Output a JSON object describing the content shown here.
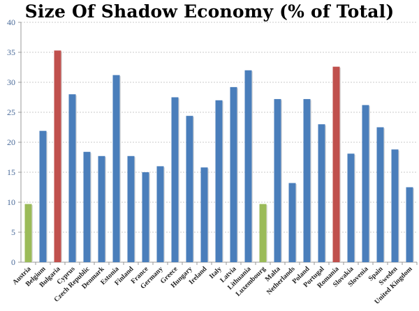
{
  "chart_data": {
    "type": "bar",
    "title": "Size Of Shadow Economy (% of Total)",
    "xlabel": "",
    "ylabel": "",
    "ylim": [
      0,
      40
    ],
    "yticks": [
      0,
      5,
      10,
      15,
      20,
      25,
      30,
      35,
      40
    ],
    "grid": true,
    "categories": [
      "Austria",
      "Belgium",
      "Bulgaria",
      "Cyprus",
      "Czech Republic",
      "Denmark",
      "Estonia",
      "Finland",
      "France",
      "Germany",
      "Greece",
      "Hungary",
      "Ireland",
      "Italy",
      "Latvia",
      "Lithuania",
      "Luxembourg",
      "Malta",
      "Netherlands",
      "Poland",
      "Portugal",
      "Romania",
      "Slovakia",
      "Slovenia",
      "Spain",
      "Sweden",
      "United Kingdom"
    ],
    "values": [
      9.7,
      21.9,
      35.3,
      28.0,
      18.4,
      17.7,
      31.2,
      17.7,
      15.0,
      16.0,
      27.5,
      24.4,
      15.8,
      27.0,
      29.2,
      32.0,
      9.7,
      27.2,
      13.2,
      27.2,
      23.0,
      32.6,
      18.1,
      26.2,
      22.5,
      18.8,
      12.5
    ],
    "colors": {
      "default": "#4a7ebb",
      "lowest": "#9bbb59",
      "highest": "#c0504d"
    },
    "highlight_lowest": [
      "Austria",
      "Luxembourg"
    ],
    "highlight_highest": [
      "Bulgaria",
      "Romania"
    ]
  }
}
